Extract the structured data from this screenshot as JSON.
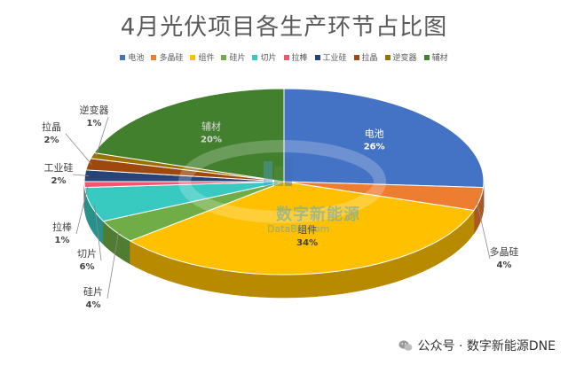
{
  "title": "4月光伏项目各生产环节占比图",
  "footer": {
    "text": "公众号 · 数字新能源DNE"
  },
  "watermark": {
    "brand": "数字新能源",
    "url": "DataBM.com"
  },
  "chart_data": {
    "type": "pie",
    "title": "4月光伏项目各生产环节占比图",
    "legend_position": "top",
    "slices": [
      {
        "name": "电池",
        "value": 26,
        "label": "26%",
        "color": "#4472c4"
      },
      {
        "name": "多晶硅",
        "value": 4,
        "label": "4%",
        "color": "#ed7d31"
      },
      {
        "name": "组件",
        "value": 34,
        "label": "34%",
        "color": "#ffc000"
      },
      {
        "name": "硅片",
        "value": 4,
        "label": "4%",
        "color": "#70ad47"
      },
      {
        "name": "切片",
        "value": 6,
        "label": "6%",
        "color": "#38c9c0"
      },
      {
        "name": "拉棒",
        "value": 1,
        "label": "1%",
        "color": "#f0576e"
      },
      {
        "name": "工业硅",
        "value": 2,
        "label": "2%",
        "color": "#264478"
      },
      {
        "name": "拉晶",
        "value": 2,
        "label": "2%",
        "color": "#9e480e"
      },
      {
        "name": "逆变器",
        "value": 1,
        "label": "1%",
        "color": "#997300"
      },
      {
        "name": "辅材",
        "value": 20,
        "label": "20%",
        "color": "#43802e"
      }
    ]
  }
}
